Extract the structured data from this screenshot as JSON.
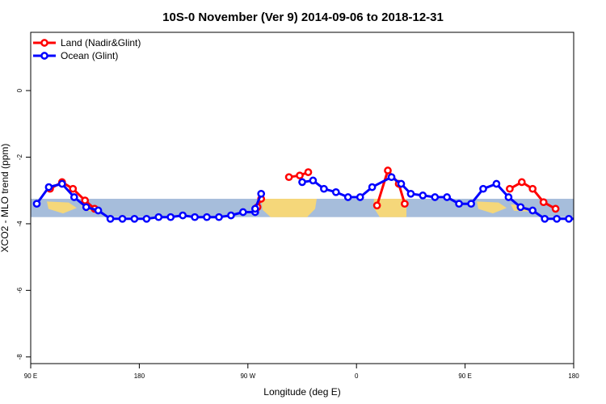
{
  "chart_data": {
    "type": "line",
    "title": "10S-0 November (Ver 9)   2014-09-06 to 2018-12-31",
    "xlabel": "Longitude (deg E)",
    "ylabel": "XCO2 - MLO trend (ppm)",
    "xlim": [
      90,
      540
    ],
    "ylim": [
      -8.2,
      1.75
    ],
    "x_ticks": [
      {
        "value": 90,
        "label": "90 E"
      },
      {
        "value": 180,
        "label": "180"
      },
      {
        "value": 270,
        "label": "90 W"
      },
      {
        "value": 360,
        "label": "0"
      },
      {
        "value": 450,
        "label": "90 E"
      },
      {
        "value": 540,
        "label": "180"
      }
    ],
    "y_ticks": [
      {
        "value": 0,
        "label": "0"
      },
      {
        "value": -2,
        "label": "-2"
      },
      {
        "value": -4,
        "label": "-4"
      },
      {
        "value": -6,
        "label": "-6"
      },
      {
        "value": -8,
        "label": "-8"
      }
    ],
    "band": {
      "y_min": -3.8,
      "y_max": -3.25,
      "color": "#a6bddb"
    },
    "land_color": "#f5d77a",
    "grid": false,
    "legend_position": "top-left",
    "series": [
      {
        "name": "Land (Nadir&Glint)",
        "color": "#ff0000",
        "segments": [
          [
            [
              106,
              -2.95
            ],
            [
              116,
              -2.75
            ],
            [
              125,
              -2.95
            ],
            [
              135,
              -3.3
            ],
            [
              143,
              -3.55
            ]
          ],
          [
            [
              278,
              -3.5
            ],
            [
              281,
              -3.25
            ]
          ],
          [
            [
              304,
              -2.6
            ],
            [
              313,
              -2.55
            ],
            [
              320,
              -2.45
            ]
          ],
          [
            [
              377,
              -3.45
            ],
            [
              386,
              -2.4
            ],
            [
              395,
              -2.8
            ],
            [
              400,
              -3.4
            ]
          ],
          [
            [
              487,
              -2.95
            ],
            [
              497,
              -2.75
            ],
            [
              506,
              -2.95
            ],
            [
              515,
              -3.35
            ],
            [
              525,
              -3.55
            ]
          ]
        ]
      },
      {
        "name": "Ocean (Glint)",
        "color": "#0000ff",
        "segments": [
          [
            [
              95,
              -3.4
            ],
            [
              105,
              -2.9
            ],
            [
              116,
              -2.8
            ],
            [
              126,
              -3.2
            ],
            [
              136,
              -3.5
            ],
            [
              146,
              -3.6
            ],
            [
              156,
              -3.85
            ],
            [
              166,
              -3.85
            ],
            [
              176,
              -3.85
            ],
            [
              186,
              -3.85
            ],
            [
              196,
              -3.8
            ],
            [
              206,
              -3.8
            ],
            [
              216,
              -3.75
            ],
            [
              226,
              -3.8
            ],
            [
              236,
              -3.8
            ],
            [
              246,
              -3.8
            ],
            [
              256,
              -3.75
            ],
            [
              266,
              -3.65
            ],
            [
              276,
              -3.65
            ],
            [
              276,
              -3.55
            ],
            [
              281,
              -3.1
            ]
          ],
          [
            [
              315,
              -2.75
            ],
            [
              324,
              -2.7
            ],
            [
              333,
              -2.95
            ],
            [
              343,
              -3.05
            ],
            [
              353,
              -3.2
            ],
            [
              363,
              -3.2
            ],
            [
              373,
              -2.9
            ],
            [
              389,
              -2.6
            ],
            [
              397,
              -2.8
            ],
            [
              405,
              -3.1
            ],
            [
              415,
              -3.15
            ],
            [
              425,
              -3.2
            ],
            [
              435,
              -3.2
            ],
            [
              445,
              -3.4
            ],
            [
              455,
              -3.4
            ],
            [
              465,
              -2.95
            ],
            [
              476,
              -2.8
            ],
            [
              486,
              -3.2
            ],
            [
              496,
              -3.5
            ],
            [
              506,
              -3.6
            ],
            [
              516,
              -3.85
            ],
            [
              526,
              -3.85
            ],
            [
              536,
              -3.85
            ],
            [
              546,
              -3.85
            ]
          ]
        ]
      }
    ]
  }
}
